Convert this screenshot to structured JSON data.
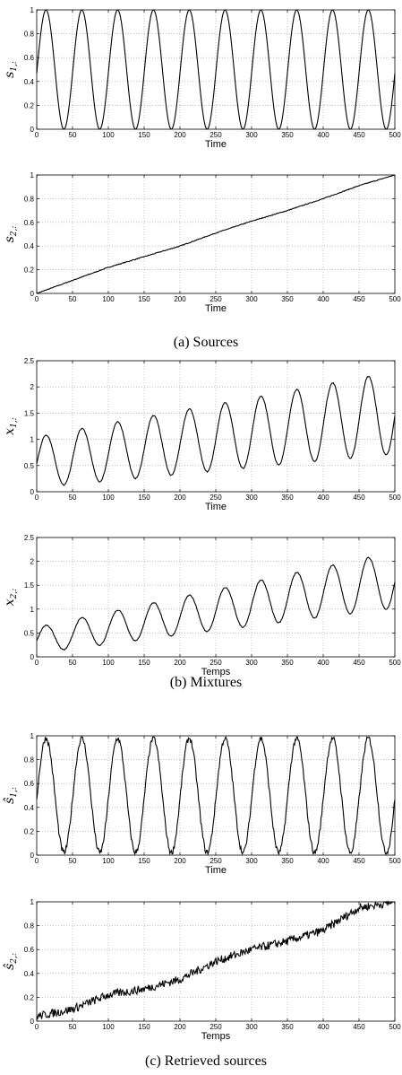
{
  "figure": {
    "captions": [
      "(a) Sources",
      "(b) Mixtures",
      "(c) Retrieved sources"
    ]
  },
  "chart_data": [
    {
      "type": "line",
      "group": 0,
      "title": "",
      "xlabel": "Time",
      "ylabel": "s1,:",
      "ylabel_sub": "1,:",
      "ylabel_base": "s",
      "hat": false,
      "xlim": [
        0,
        500
      ],
      "ylim": [
        0,
        1
      ],
      "xticks": [
        0,
        50,
        100,
        150,
        200,
        250,
        300,
        350,
        400,
        450,
        500
      ],
      "yticks": [
        0,
        0.2,
        0.4,
        0.6,
        0.8,
        1
      ],
      "grid": true,
      "series": [
        {
          "generator": "0.5 + 0.5*sin(2*pi*t/50) (period 50, 10 cycles, peaks at t≈13, 63, ..., 463; ends at 0.5)"
        }
      ]
    },
    {
      "type": "line",
      "group": 0,
      "title": "",
      "xlabel": "Time",
      "ylabel": "s2,:",
      "ylabel_sub": "2,:",
      "ylabel_base": "s",
      "hat": false,
      "xlim": [
        0,
        500
      ],
      "ylim": [
        0,
        1
      ],
      "xticks": [
        0,
        50,
        100,
        150,
        200,
        250,
        300,
        350,
        400,
        450,
        500
      ],
      "yticks": [
        0,
        0.2,
        0.4,
        0.6,
        0.8,
        1
      ],
      "grid": true,
      "series": [
        {
          "x": [
            0,
            50,
            100,
            150,
            200,
            250,
            300,
            350,
            400,
            450,
            500
          ],
          "y": [
            0,
            0.11,
            0.22,
            0.31,
            0.4,
            0.51,
            0.61,
            0.7,
            0.8,
            0.91,
            1.0
          ]
        }
      ]
    },
    {
      "type": "line",
      "group": 1,
      "title": "",
      "xlabel": "Time",
      "ylabel": "x1,:",
      "ylabel_sub": "1,:",
      "ylabel_base": "x",
      "hat": false,
      "xlim": [
        0,
        500
      ],
      "ylim": [
        0,
        2.5
      ],
      "xticks": [
        0,
        50,
        100,
        150,
        200,
        250,
        300,
        350,
        400,
        450,
        500
      ],
      "yticks": [
        0,
        0.5,
        1,
        1.5,
        2,
        2.5
      ],
      "grid": true,
      "series": [
        {
          "generator": "mixture ≈ 0.55 + 0.8*sin(2*pi*t/50)*0.5 + 1.1*s2; peaks ≈1.05 at t=13 rising to ≈2.2 at t=463, troughs ≈0.1 at t=38 rising to ≈0.7 at t=488, ends ≈1.47"
        }
      ]
    },
    {
      "type": "line",
      "group": 1,
      "title": "",
      "xlabel": "Temps",
      "ylabel": "x2,:",
      "ylabel_sub": "2,:",
      "ylabel_base": "x",
      "hat": false,
      "xlim": [
        0,
        500
      ],
      "ylim": [
        0,
        2.5
      ],
      "xticks": [
        0,
        50,
        100,
        150,
        200,
        250,
        300,
        350,
        400,
        450,
        500
      ],
      "yticks": [
        0,
        0.5,
        1,
        1.5,
        2,
        2.5
      ],
      "grid": true,
      "series": [
        {
          "generator": "mixture; peaks ≈0.62 at t=13 rising to ≈2.08 at t=463, troughs ≈0.1 at t=38 rising to ≈1.0 at t=488, ends ≈1.6"
        }
      ]
    },
    {
      "type": "line",
      "group": 2,
      "title": "",
      "xlabel": "Time",
      "ylabel": "ŝ1,:",
      "ylabel_sub": "1,:",
      "ylabel_base": "s",
      "hat": true,
      "xlim": [
        0,
        500
      ],
      "ylim": [
        0,
        1
      ],
      "xticks": [
        0,
        50,
        100,
        150,
        200,
        250,
        300,
        350,
        400,
        450,
        500
      ],
      "yticks": [
        0,
        0.2,
        0.4,
        0.6,
        0.8,
        1
      ],
      "grid": true,
      "series": [
        {
          "generator": "noisy estimate of s1; peaks ≈0.97, troughs ≈0.02"
        }
      ]
    },
    {
      "type": "line",
      "group": 2,
      "title": "",
      "xlabel": "Temps",
      "ylabel": "ŝ2,:",
      "ylabel_sub": "2,:",
      "ylabel_base": "s",
      "hat": true,
      "xlim": [
        0,
        500
      ],
      "ylim": [
        0,
        1
      ],
      "xticks": [
        0,
        50,
        100,
        150,
        200,
        250,
        300,
        350,
        400,
        450,
        500
      ],
      "yticks": [
        0,
        0.2,
        0.4,
        0.6,
        0.8,
        1
      ],
      "grid": true,
      "series": [
        {
          "x": [
            0,
            50,
            100,
            150,
            200,
            250,
            300,
            350,
            400,
            450,
            500
          ],
          "y": [
            0.04,
            0.1,
            0.22,
            0.27,
            0.35,
            0.5,
            0.6,
            0.67,
            0.76,
            0.95,
            1.0
          ]
        }
      ]
    }
  ]
}
